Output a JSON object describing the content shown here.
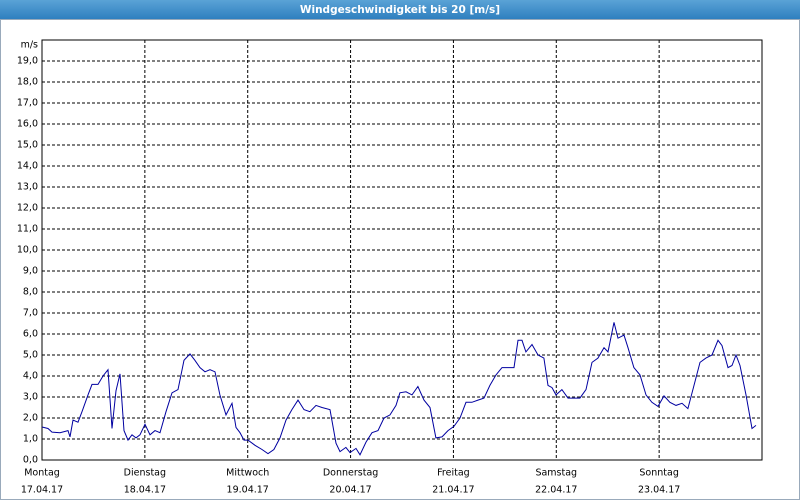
{
  "chart_data": {
    "type": "line",
    "title": "Windgeschwindigkeit bis 20 [m/s]",
    "y_unit": "m/s",
    "x": [
      0,
      0.058,
      0.097,
      0.175,
      0.253,
      0.272,
      0.301,
      0.35,
      0.389,
      0.447,
      0.486,
      0.544,
      0.593,
      0.642,
      0.681,
      0.719,
      0.758,
      0.797,
      0.836,
      0.875,
      0.914,
      0.953,
      1.001,
      1.05,
      1.099,
      1.147,
      1.206,
      1.264,
      1.322,
      1.381,
      1.439,
      1.487,
      1.536,
      1.585,
      1.633,
      1.682,
      1.73,
      1.789,
      1.847,
      1.886,
      1.925,
      1.964,
      2.003,
      2.071,
      2.139,
      2.197,
      2.255,
      2.314,
      2.372,
      2.43,
      2.489,
      2.547,
      2.605,
      2.664,
      2.722,
      2.8,
      2.858,
      2.897,
      2.955,
      2.994,
      3.053,
      3.092,
      3.15,
      3.208,
      3.267,
      3.325,
      3.383,
      3.442,
      3.48,
      3.539,
      3.597,
      3.655,
      3.714,
      3.772,
      3.83,
      3.889,
      3.947,
      4.005,
      4.064,
      4.122,
      4.18,
      4.239,
      4.297,
      4.355,
      4.414,
      4.472,
      4.53,
      4.589,
      4.628,
      4.667,
      4.705,
      4.764,
      4.822,
      4.88,
      4.919,
      4.958,
      4.997,
      5.055,
      5.114,
      5.172,
      5.23,
      5.289,
      5.347,
      5.405,
      5.464,
      5.503,
      5.561,
      5.6,
      5.658,
      5.697,
      5.755,
      5.814,
      5.872,
      5.93,
      5.989,
      6.047,
      6.105,
      6.164,
      6.222,
      6.28,
      6.339,
      6.397,
      6.455,
      6.514,
      6.572,
      6.611,
      6.669,
      6.708,
      6.747,
      6.786,
      6.844,
      6.903,
      6.942
    ],
    "series": [
      {
        "color": "#0000a0",
        "values": [
          1.57,
          1.5,
          1.33,
          1.3,
          1.4,
          1.1,
          1.9,
          1.8,
          2.3,
          3.1,
          3.6,
          3.6,
          4.0,
          4.3,
          1.5,
          3.3,
          4.1,
          1.4,
          0.95,
          1.2,
          1.05,
          1.2,
          1.7,
          1.2,
          1.4,
          1.3,
          2.3,
          3.2,
          3.35,
          4.75,
          5.05,
          4.75,
          4.4,
          4.2,
          4.3,
          4.2,
          3.1,
          2.15,
          2.7,
          1.55,
          1.3,
          0.95,
          0.95,
          0.7,
          0.5,
          0.3,
          0.5,
          1.05,
          1.9,
          2.4,
          2.85,
          2.4,
          2.3,
          2.6,
          2.5,
          2.4,
          0.8,
          0.4,
          0.6,
          0.35,
          0.55,
          0.25,
          0.85,
          1.3,
          1.4,
          2.0,
          2.15,
          2.6,
          3.2,
          3.25,
          3.1,
          3.5,
          2.85,
          2.5,
          1.05,
          1.1,
          1.4,
          1.6,
          2.0,
          2.75,
          2.75,
          2.85,
          2.95,
          3.55,
          4.05,
          4.4,
          4.4,
          4.4,
          5.7,
          5.7,
          5.15,
          5.5,
          5.0,
          4.85,
          3.55,
          3.45,
          3.1,
          3.35,
          2.95,
          2.95,
          2.95,
          3.35,
          4.65,
          4.85,
          5.35,
          5.15,
          6.55,
          5.8,
          5.95,
          5.35,
          4.4,
          4.05,
          3.1,
          2.75,
          2.55,
          3.05,
          2.75,
          2.6,
          2.7,
          2.45,
          3.55,
          4.65,
          4.85,
          5.0,
          5.7,
          5.45,
          4.4,
          4.5,
          5.0,
          4.5,
          3.1,
          1.5,
          1.65
        ]
      }
    ],
    "xlim": [
      0,
      7
    ],
    "xticks": [
      {
        "value": 0,
        "label": "Montag"
      },
      {
        "value": 1,
        "label": "Dienstag"
      },
      {
        "value": 2,
        "label": "Mittwoch"
      },
      {
        "value": 3,
        "label": "Donnerstag"
      },
      {
        "value": 4,
        "label": "Freitag"
      },
      {
        "value": 5,
        "label": "Samstag"
      },
      {
        "value": 6,
        "label": "Sonntag"
      }
    ],
    "xtick_dates": [
      "17.04.17",
      "18.04.17",
      "19.04.17",
      "20.04.17",
      "21.04.17",
      "22.04.17",
      "23.04.17"
    ],
    "ylim": [
      0,
      20
    ],
    "yticks": [
      {
        "value": 0,
        "label": "0,0"
      },
      {
        "value": 1,
        "label": "1,0"
      },
      {
        "value": 2,
        "label": "2,0"
      },
      {
        "value": 3,
        "label": "3,0"
      },
      {
        "value": 4,
        "label": "4,0"
      },
      {
        "value": 5,
        "label": "5,0"
      },
      {
        "value": 6,
        "label": "6,0"
      },
      {
        "value": 7,
        "label": "7,0"
      },
      {
        "value": 8,
        "label": "8,0"
      },
      {
        "value": 9,
        "label": "9,0"
      },
      {
        "value": 10,
        "label": "10,0"
      },
      {
        "value": 11,
        "label": "11,0"
      },
      {
        "value": 12,
        "label": "12,0"
      },
      {
        "value": 13,
        "label": "13,0"
      },
      {
        "value": 14,
        "label": "14,0"
      },
      {
        "value": 15,
        "label": "15,0"
      },
      {
        "value": 16,
        "label": "16,0"
      },
      {
        "value": 17,
        "label": "17,0"
      },
      {
        "value": 18,
        "label": "18,0"
      },
      {
        "value": 19,
        "label": "19,0"
      }
    ],
    "grid": true
  }
}
